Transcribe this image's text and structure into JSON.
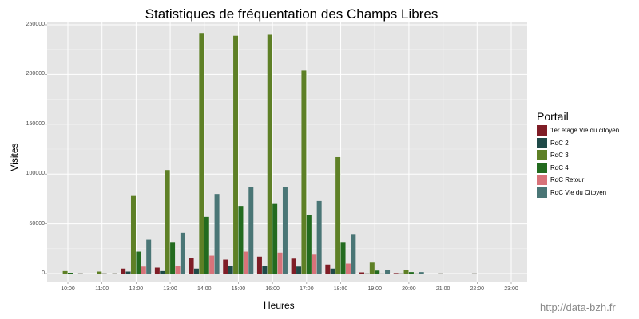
{
  "chart_data": {
    "type": "bar",
    "title": "Statistiques de fréquentation des Champs Libres",
    "xlabel": "Heures",
    "ylabel": "Visites",
    "ylim": [
      -12000,
      250000
    ],
    "yticks": [
      0,
      50000,
      100000,
      150000,
      200000,
      250000
    ],
    "ytick_labels": [
      "0",
      "50000",
      "100000",
      "150000",
      "200000",
      "250000"
    ],
    "categories": [
      "10:00",
      "11:00",
      "12:00",
      "13:00",
      "14:00",
      "15:00",
      "16:00",
      "17:00",
      "18:00",
      "19:00",
      "20:00",
      "21:00",
      "22:00",
      "23:00"
    ],
    "legend_title": "Portail",
    "legend_position": "right",
    "grid": true,
    "series": [
      {
        "name": "1er étage Vie du citoyen",
        "color": "#7f1d26",
        "values": [
          0,
          0,
          5000,
          6000,
          16000,
          14000,
          17000,
          15000,
          9000,
          1200,
          500,
          0,
          0,
          0
        ]
      },
      {
        "name": "RdC 2",
        "color": "#1f4a48",
        "values": [
          0,
          0,
          2000,
          2500,
          5000,
          8000,
          8000,
          7000,
          5000,
          500,
          500,
          0,
          0,
          0
        ]
      },
      {
        "name": "RdC 3",
        "color": "#5e8026",
        "values": [
          2500,
          2000,
          78000,
          104000,
          241000,
          239000,
          240000,
          204000,
          117000,
          11000,
          4000,
          500,
          500,
          0
        ]
      },
      {
        "name": "RdC 4",
        "color": "#236b1f",
        "values": [
          800,
          600,
          22000,
          31000,
          57000,
          68000,
          70000,
          59000,
          31000,
          3000,
          1500,
          0,
          0,
          0
        ]
      },
      {
        "name": "RdC Retour",
        "color": "#d8737a",
        "values": [
          0,
          0,
          7000,
          8000,
          18000,
          22000,
          21000,
          19000,
          10000,
          300,
          300,
          0,
          0,
          0
        ]
      },
      {
        "name": "RdC Vie du Citoyen",
        "color": "#4a7676",
        "values": [
          600,
          600,
          34000,
          41000,
          80000,
          87000,
          87000,
          73000,
          39000,
          4000,
          1500,
          0,
          0,
          0
        ]
      }
    ]
  },
  "watermark": "http://data-bzh.fr"
}
